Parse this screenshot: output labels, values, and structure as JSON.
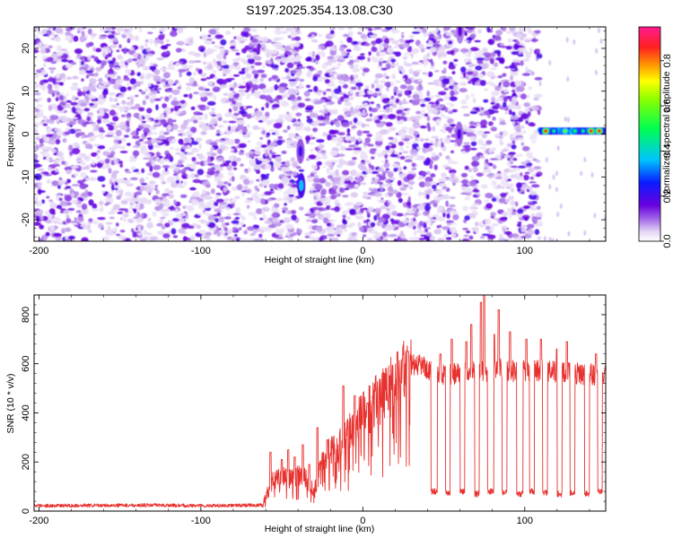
{
  "title": "S197.2025.354.13.08.C30",
  "colors": {
    "snr_line": "#e8322f",
    "frame": "#000000",
    "background": "#ffffff"
  },
  "chart_data": [
    {
      "type": "heatmap",
      "name": "spectrogram",
      "xlabel": "Height of straight line (km)",
      "ylabel": "Frequency (Hz)",
      "xlim": [
        -203,
        150
      ],
      "ylim": [
        -25,
        25
      ],
      "xticks": [
        -200,
        -100,
        0,
        100
      ],
      "xtick_labels": [
        "-200",
        "-100",
        "0",
        "100"
      ],
      "yticks": [
        -20,
        -10,
        0,
        10,
        20
      ],
      "ytick_labels": [
        "-20",
        "-10",
        "0",
        "10",
        "20"
      ],
      "colorbar": {
        "label": "Normalized spectral amplitude",
        "range": [
          0,
          0.95
        ],
        "ticks": [
          0.0,
          0.2,
          0.4,
          0.6,
          0.8
        ],
        "tick_labels": [
          "0.0",
          "0.2",
          "0.4",
          "0.6",
          "0.8"
        ],
        "stops": [
          {
            "v": 0.0,
            "color": "#ffffff"
          },
          {
            "v": 0.04,
            "color": "#e6d9f5"
          },
          {
            "v": 0.1,
            "color": "#a066e6"
          },
          {
            "v": 0.16,
            "color": "#6a00e0"
          },
          {
            "v": 0.26,
            "color": "#0a1cff"
          },
          {
            "v": 0.36,
            "color": "#00c4ff"
          },
          {
            "v": 0.5,
            "color": "#00ff50"
          },
          {
            "v": 0.63,
            "color": "#8cff00"
          },
          {
            "v": 0.71,
            "color": "#ffff00"
          },
          {
            "v": 0.78,
            "color": "#ff9900"
          },
          {
            "v": 0.86,
            "color": "#ff2020"
          },
          {
            "v": 0.95,
            "color": "#ff1a90"
          }
        ]
      },
      "noise_region": {
        "x": [
          -203,
          109
        ],
        "y": [
          -25,
          25
        ],
        "typical_amplitude": [
          0.03,
          0.2
        ]
      },
      "blank_gaps": [
        {
          "x": [
            -37.5,
            -34.5
          ]
        },
        {
          "x": [
            57.5,
            62
          ]
        },
        {
          "x": [
            109,
            150
          ],
          "except_band_y": [
            -3,
            3
          ]
        }
      ],
      "hot_spots": [
        {
          "x": -38,
          "y": -12,
          "amplitude": 0.36
        },
        {
          "x": -38.5,
          "y": -4,
          "amplitude": 0.2
        },
        {
          "x": 59.5,
          "y": 0,
          "amplitude": 0.18
        },
        {
          "x": 60,
          "y": 24,
          "amplitude": 0.16
        }
      ],
      "tonal_band": {
        "y": 0.7,
        "x": [
          109,
          150
        ],
        "peaks": [
          {
            "x": 113,
            "amplitude": 0.85
          },
          {
            "x": 118,
            "amplitude": 0.45
          },
          {
            "x": 125,
            "amplitude": 0.6
          },
          {
            "x": 131,
            "amplitude": 0.5
          },
          {
            "x": 136,
            "amplitude": 0.45
          },
          {
            "x": 141,
            "amplitude": 0.86
          },
          {
            "x": 146,
            "amplitude": 0.9
          }
        ]
      }
    },
    {
      "type": "line",
      "name": "snr",
      "xlabel": "Height of straight line (km)",
      "ylabel": "SNR (10 * v/v)",
      "xlim": [
        -203,
        150
      ],
      "ylim": [
        0,
        880
      ],
      "xticks": [
        -200,
        -100,
        0,
        100
      ],
      "xtick_labels": [
        "-200",
        "-100",
        "0",
        "100"
      ],
      "yticks": [
        0,
        200,
        400,
        600,
        800
      ],
      "ytick_labels": [
        "0",
        "200",
        "400",
        "600",
        "800"
      ],
      "series": [
        {
          "name": "SNR",
          "baseline": [
            [
              -203,
              22
            ],
            [
              -130,
              24
            ],
            [
              -100,
              22
            ],
            [
              -62,
              24
            ],
            [
              -60,
              55
            ],
            [
              -56,
              120
            ],
            [
              -50,
              140
            ],
            [
              -45,
              130
            ],
            [
              -40,
              150
            ],
            [
              -36,
              140
            ],
            [
              -30,
              80
            ],
            [
              -25,
              200
            ],
            [
              -22,
              230
            ],
            [
              -18,
              250
            ],
            [
              -10,
              300
            ],
            [
              -5,
              360
            ],
            [
              0,
              400
            ],
            [
              5,
              420
            ],
            [
              10,
              460
            ],
            [
              15,
              490
            ],
            [
              20,
              530
            ],
            [
              25,
              560
            ],
            [
              30,
              590
            ],
            [
              35,
              600
            ],
            [
              40,
              580
            ],
            [
              45,
              560
            ],
            [
              55,
              560
            ],
            [
              65,
              565
            ],
            [
              75,
              570
            ],
            [
              85,
              575
            ],
            [
              95,
              570
            ],
            [
              105,
              575
            ],
            [
              120,
              565
            ],
            [
              135,
              560
            ],
            [
              150,
              555
            ]
          ],
          "drops": [
            {
              "x": [
                42,
                46
              ],
              "level": 80
            },
            {
              "x": [
                51,
                54
              ],
              "level": 75
            },
            {
              "x": [
                60,
                63
              ],
              "level": 80
            },
            {
              "x": [
                69,
                72
              ],
              "level": 70
            },
            {
              "x": [
                77,
                81
              ],
              "level": 80
            },
            {
              "x": [
                86,
                89
              ],
              "level": 75
            },
            {
              "x": [
                95,
                99
              ],
              "level": 70
            },
            {
              "x": [
                103,
                106
              ],
              "level": 80
            },
            {
              "x": [
                111,
                114
              ],
              "level": 75
            },
            {
              "x": [
                120,
                123
              ],
              "level": 70
            },
            {
              "x": [
                128,
                131
              ],
              "level": 75
            },
            {
              "x": [
                137,
                140
              ],
              "level": 70
            },
            {
              "x": [
                145,
                148
              ],
              "level": 80
            }
          ],
          "spikes": [
            {
              "x": -57,
              "value": 240
            },
            {
              "x": -50,
              "value": 210
            },
            {
              "x": -46,
              "value": 250
            },
            {
              "x": -42,
              "value": 220
            },
            {
              "x": -37,
              "value": 270
            },
            {
              "x": -33,
              "value": 190
            },
            {
              "x": -28,
              "value": 340
            },
            {
              "x": -22,
              "value": 290
            },
            {
              "x": -12,
              "value": 510
            },
            {
              "x": -5,
              "value": 470
            },
            {
              "x": 3,
              "value": 440
            },
            {
              "x": 28,
              "value": 650
            },
            {
              "x": 48,
              "value": 640
            },
            {
              "x": 55,
              "value": 700
            },
            {
              "x": 64,
              "value": 690
            },
            {
              "x": 67,
              "value": 760
            },
            {
              "x": 73,
              "value": 850
            },
            {
              "x": 75,
              "value": 880
            },
            {
              "x": 81,
              "value": 720
            },
            {
              "x": 84,
              "value": 820
            },
            {
              "x": 91,
              "value": 730
            },
            {
              "x": 101,
              "value": 700
            },
            {
              "x": 110,
              "value": 700
            },
            {
              "x": 120,
              "value": 660
            },
            {
              "x": 126,
              "value": 690
            },
            {
              "x": 144,
              "value": 640
            }
          ]
        }
      ]
    }
  ]
}
